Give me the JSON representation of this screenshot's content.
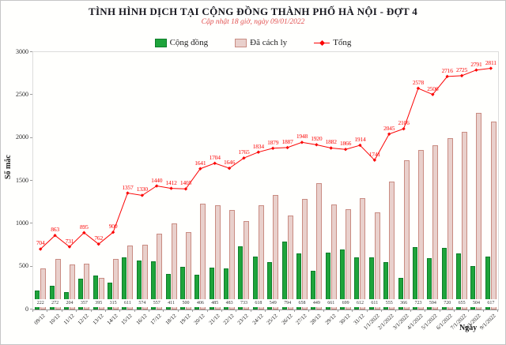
{
  "header": {
    "title": "TÌNH HÌNH DỊCH TẠI CỘNG ĐỒNG THÀNH PHỐ HÀ NỘI - ĐỢT 4",
    "subtitle": "Cập nhật 18 giờ, ngày 09/01/2022"
  },
  "colors": {
    "community_fill": "#1ea43b",
    "community_border": "#0f7d2a",
    "quarantine_fill": "#e9d0cc",
    "quarantine_border": "#c98c82",
    "total_line": "#fb0404",
    "subtitle_red": "#e25353"
  },
  "chart_data": {
    "type": "bar+line",
    "title": "TÌNH HÌNH DỊCH TẠI CỘNG ĐỒNG THÀNH PHỐ HÀ NỘI - ĐỢT 4",
    "subtitle": "Cập nhật 18 giờ, ngày 09/01/2022",
    "xlabel": "Ngày",
    "ylabel": "Số mắc",
    "ylim": [
      0,
      3000
    ],
    "yticks": [
      0,
      500,
      1000,
      1500,
      2000,
      2500,
      3000
    ],
    "grid": false,
    "legend_position": "top",
    "categories": [
      "09/12",
      "10/12",
      "11/12",
      "12/12",
      "13/12",
      "14/12",
      "15/12",
      "16/12",
      "17/12",
      "18/12",
      "19/12",
      "20/12",
      "21/12",
      "22/12",
      "23/12",
      "24/12",
      "25/12",
      "26/12",
      "27/12",
      "28/12",
      "29/12",
      "30/12",
      "31/12",
      "1/1/2022",
      "2/1/2022",
      "3/1/2022",
      "4/1/2022",
      "5/1/2022",
      "6/1/2022",
      "7/1/2022",
      "8/1/2022",
      "9/1/2022"
    ],
    "series": [
      {
        "name": "Cộng đồng",
        "type": "bar",
        "color": "#1ea43b",
        "border": "#0f7d2a",
        "labeled": true,
        "values": [
          222,
          272,
          204,
          357,
          395,
          315,
          611,
          574,
          557,
          411,
          500,
          406,
          485,
          483,
          733,
          618,
          549,
          794,
          658,
          449,
          661,
          699,
          612,
          611,
          555,
          366,
          723,
          594,
          720,
          655,
          504,
          617
        ]
      },
      {
        "name": "Đã cách ly",
        "type": "bar",
        "color": "#e9d0cc",
        "border": "#c98c82",
        "labeled": false,
        "values": [
          482,
          591,
          527,
          538,
          367,
          585,
          746,
          756,
          883,
          1001,
          905,
          1235,
          1219,
          1163,
          1032,
          1216,
          1330,
          1093,
          1290,
          1471,
          1221,
          1167,
          1302,
          1130,
          1490,
          1740,
          1855,
          1912,
          1996,
          2070,
          2287,
          2194
        ]
      },
      {
        "name": "Tổng",
        "type": "line",
        "color": "#fb0404",
        "labeled": true,
        "values": [
          704,
          863,
          731,
          895,
          762,
          900,
          1357,
          1330,
          1440,
          1412,
          1405,
          1641,
          1704,
          1646,
          1765,
          1834,
          1879,
          1887,
          1948,
          1920,
          1882,
          1866,
          1914,
          1741,
          2045,
          2106,
          2578,
          2506,
          2716,
          2725,
          2791,
          2811
        ]
      }
    ]
  }
}
